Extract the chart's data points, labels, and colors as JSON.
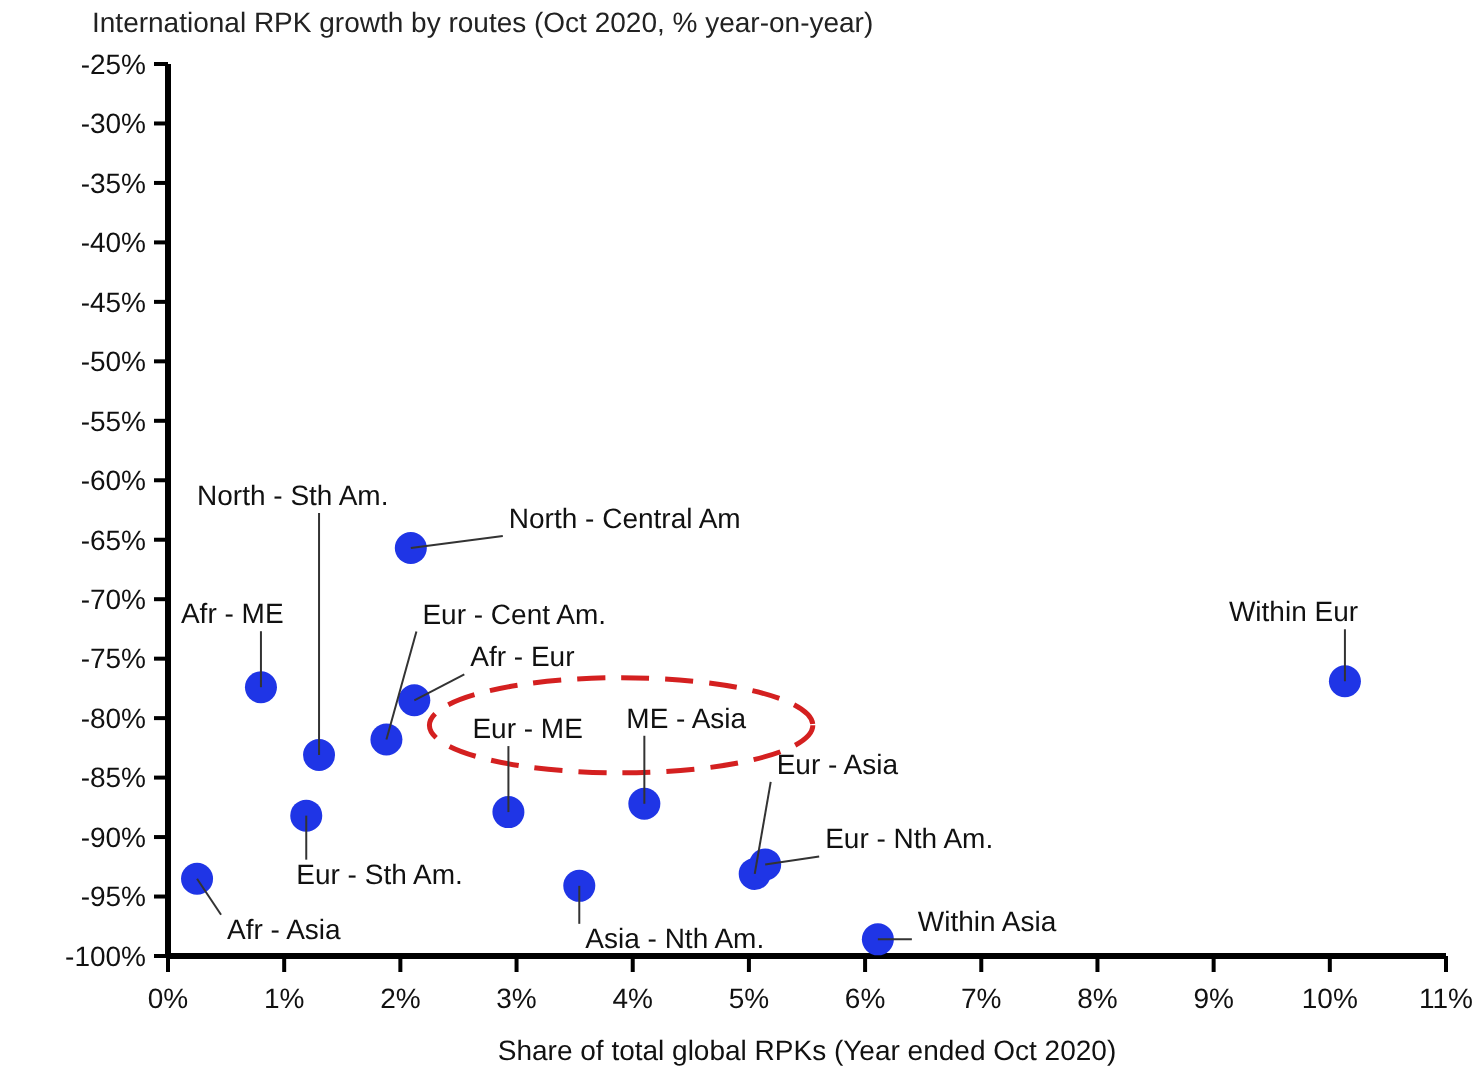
{
  "chart_data": {
    "type": "scatter",
    "title": "International RPK growth by routes (Oct 2020, % year-on-year)",
    "xlabel": "Share of total global RPKs (Year ended Oct 2020)",
    "series": [
      {
        "color": "#1f35e6",
        "x": [
          0.25,
          0.8,
          1.3,
          1.19,
          1.88,
          2.09,
          2.12,
          2.93,
          4.1,
          3.54,
          5.05,
          5.14,
          6.11,
          10.13
        ],
        "values": [
          -93.5,
          -77.4,
          -83.1,
          -88.2,
          -81.8,
          -65.7,
          -78.5,
          -87.9,
          -87.2,
          -94.1,
          -93.1,
          -92.3,
          -98.6,
          -76.9
        ]
      }
    ],
    "marker": "circle",
    "grid": false,
    "xlim": [
      0,
      11
    ],
    "ylim": [
      -100,
      -25
    ],
    "xticks": [
      {
        "value": 0,
        "label": "0%"
      },
      {
        "value": 1,
        "label": "1%"
      },
      {
        "value": 2,
        "label": "2%"
      },
      {
        "value": 3,
        "label": "3%"
      },
      {
        "value": 4,
        "label": "4%"
      },
      {
        "value": 5,
        "label": "5%"
      },
      {
        "value": 6,
        "label": "6%"
      },
      {
        "value": 7,
        "label": "7%"
      },
      {
        "value": 8,
        "label": "8%"
      },
      {
        "value": 9,
        "label": "9%"
      },
      {
        "value": 10,
        "label": "10%"
      },
      {
        "value": 11,
        "label": "11%"
      }
    ],
    "yticks": [
      {
        "value": -25,
        "label": "-25%"
      },
      {
        "value": -30,
        "label": "-30%"
      },
      {
        "value": -35,
        "label": "-35%"
      },
      {
        "value": -40,
        "label": "-40%"
      },
      {
        "value": -45,
        "label": "-45%"
      },
      {
        "value": -50,
        "label": "-50%"
      },
      {
        "value": -55,
        "label": "-55%"
      },
      {
        "value": -60,
        "label": "-60%"
      },
      {
        "value": -65,
        "label": "-65%"
      },
      {
        "value": -70,
        "label": "-70%"
      },
      {
        "value": -75,
        "label": "-75%"
      },
      {
        "value": -80,
        "label": "-80%"
      },
      {
        "value": -85,
        "label": "-85%"
      },
      {
        "value": -90,
        "label": "-90%"
      },
      {
        "value": -95,
        "label": "-95%"
      },
      {
        "value": -100,
        "label": "-100%"
      }
    ],
    "annotations": [
      {
        "text": "Afr - Asia",
        "x": 0.25,
        "y": -93.5
      },
      {
        "text": "Afr - ME",
        "x": 0.8,
        "y": -77.4
      },
      {
        "text": "North - Sth Am.",
        "x": 1.3,
        "y": -83.1
      },
      {
        "text": "Eur - Sth Am.",
        "x": 1.19,
        "y": -88.2
      },
      {
        "text": "Eur - Cent Am.",
        "x": 1.88,
        "y": -81.8
      },
      {
        "text": "North - Central Am",
        "x": 2.09,
        "y": -65.7
      },
      {
        "text": "Afr - Eur",
        "x": 2.12,
        "y": -78.5
      },
      {
        "text": "Eur - ME",
        "x": 2.93,
        "y": -87.9
      },
      {
        "text": "ME - Asia",
        "x": 4.1,
        "y": -87.2
      },
      {
        "text": "Asia - Nth Am.",
        "x": 3.54,
        "y": -94.1
      },
      {
        "text": "Eur - Asia",
        "x": 5.05,
        "y": -93.1
      },
      {
        "text": "Eur - Nth Am.",
        "x": 5.14,
        "y": -92.3
      },
      {
        "text": "Within Asia",
        "x": 6.11,
        "y": -98.6
      },
      {
        "text": "Within Eur",
        "x": 10.13,
        "y": -76.9
      }
    ]
  }
}
